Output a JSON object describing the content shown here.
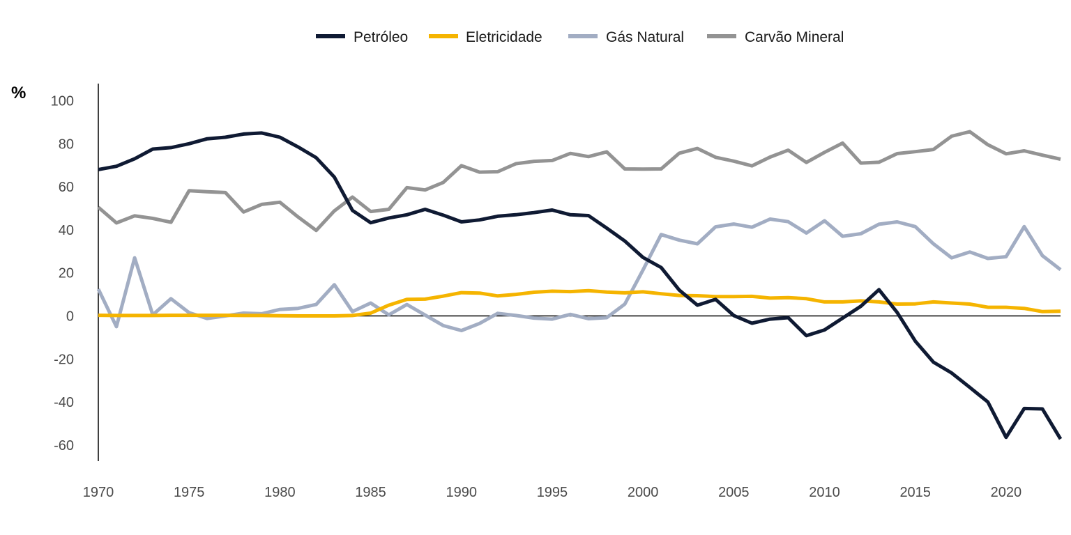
{
  "chart_data": {
    "type": "line",
    "title": "",
    "xlabel": "",
    "ylabel": "%",
    "xlim": [
      1970,
      2023
    ],
    "ylim": [
      -70,
      110
    ],
    "y_ticks": [
      100,
      80,
      60,
      40,
      20,
      0,
      -20,
      -40,
      -60
    ],
    "y_tick_labels": [
      "100",
      "80",
      "60",
      "40",
      "20",
      "0",
      "-20",
      "-40",
      "-60"
    ],
    "x_ticks": [
      1970,
      1975,
      1980,
      1985,
      1990,
      1995,
      2000,
      2005,
      2010,
      2015,
      2020
    ],
    "x_tick_labels": [
      "1970",
      "1975",
      "1980",
      "1985",
      "1990",
      "1995",
      "2000",
      "2005",
      "2010",
      "2015",
      "2020"
    ],
    "grid": false,
    "legend_position": "top-center",
    "x": [
      1970,
      1971,
      1972,
      1973,
      1974,
      1975,
      1976,
      1977,
      1978,
      1979,
      1980,
      1981,
      1982,
      1983,
      1984,
      1985,
      1986,
      1987,
      1988,
      1989,
      1990,
      1991,
      1992,
      1993,
      1994,
      1995,
      1996,
      1997,
      1998,
      1999,
      2000,
      2001,
      2002,
      2003,
      2004,
      2005,
      2006,
      2007,
      2008,
      2009,
      2010,
      2011,
      2012,
      2013,
      2014,
      2015,
      2016,
      2017,
      2018,
      2019,
      2020,
      2021,
      2022,
      2023
    ],
    "series": [
      {
        "name": "Petróleo",
        "color": "#0f1a33",
        "values": [
          68,
          69.5,
          73,
          77.5,
          78.2,
          80,
          82.3,
          83,
          84.5,
          85,
          83,
          78.5,
          73.5,
          64.5,
          49,
          43.3,
          45.5,
          47,
          49.5,
          46.8,
          43.7,
          44.6,
          46.3,
          47,
          48,
          49.2,
          47,
          46.6,
          40.8,
          34.8,
          27.2,
          22.5,
          12,
          5,
          7.7,
          0.2,
          -3.4,
          -1.5,
          -0.8,
          -9.2,
          -6.5,
          -1,
          4.5,
          12.2,
          1.6,
          -11.7,
          -21.5,
          -26.5,
          -33.2,
          -40,
          -56.4,
          -43,
          -43.2,
          -57.2
        ]
      },
      {
        "name": "Eletricidade",
        "color": "#f5b400",
        "values": [
          0.3,
          0.2,
          0.2,
          0.2,
          0.3,
          0.3,
          0.3,
          0.3,
          0.2,
          0.2,
          0.1,
          0,
          0,
          0,
          0.2,
          1.3,
          5,
          7.7,
          7.8,
          9.2,
          10.8,
          10.6,
          9.3,
          10,
          11,
          11.5,
          11.3,
          11.7,
          11.1,
          10.7,
          11.2,
          10.3,
          9.5,
          9.4,
          9,
          9,
          9.1,
          8.3,
          8.5,
          8,
          6.5,
          6.5,
          7,
          6.5,
          5.5,
          5.6,
          6.5,
          6,
          5.5,
          4,
          4,
          3.5,
          2,
          2.2
        ]
      },
      {
        "name": "Gás Natural",
        "color": "#a2adc3",
        "values": [
          12.5,
          -5,
          27,
          0.5,
          8,
          1.5,
          -1.2,
          0,
          1.3,
          1,
          3,
          3.5,
          5.3,
          14.5,
          2,
          6,
          0.5,
          5.3,
          0.4,
          -4.5,
          -6.8,
          -3.5,
          1.2,
          0.2,
          -1,
          -1.5,
          0.7,
          -1.3,
          -0.8,
          5.5,
          21.3,
          37.8,
          35.2,
          33.5,
          41.4,
          42.7,
          41.2,
          45,
          43.8,
          38.5,
          44.2,
          37,
          38.2,
          42.6,
          43.7,
          41.5,
          33.5,
          27,
          29.7,
          26.7,
          27.5,
          41.5,
          28,
          21.5
        ]
      },
      {
        "name": "Carvão Mineral",
        "color": "#939393",
        "values": [
          50.5,
          43.2,
          46.5,
          45.3,
          43.5,
          58.2,
          57.7,
          57.3,
          48.3,
          51.8,
          52.8,
          46,
          39.7,
          48.8,
          55.2,
          48.5,
          49.5,
          59.6,
          58.5,
          62,
          69.8,
          66.8,
          67,
          70.7,
          71.8,
          72.2,
          75.5,
          74,
          76.2,
          68.3,
          68.2,
          68.3,
          75.6,
          77.8,
          73.7,
          71.9,
          69.7,
          73.8,
          77,
          71.3,
          76,
          80.3,
          71,
          71.4,
          75.4,
          76.3,
          77.3,
          83.5,
          85.6,
          79.5,
          75.3,
          76.7,
          74.7,
          72.8
        ]
      }
    ]
  }
}
